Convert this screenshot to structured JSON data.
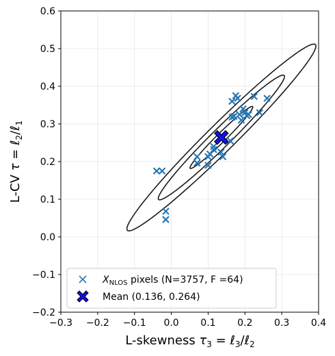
{
  "chart_data": {
    "type": "scatter",
    "xlabel": {
      "base": "L-skewness ",
      "math": "τ",
      "sub": "3",
      "rest": " = ℓ",
      "sub2": "3",
      "slash": "/ℓ",
      "sub3": "2"
    },
    "ylabel": {
      "base": "L-CV ",
      "math": "τ",
      "rest": " = ℓ",
      "sub": "2",
      "slash": "/ℓ",
      "sub2": "1"
    },
    "xlim": [
      -0.3,
      0.4
    ],
    "ylim": [
      -0.2,
      0.6
    ],
    "xticks": [
      -0.3,
      -0.2,
      -0.1,
      0.0,
      0.1,
      0.2,
      0.3,
      0.4
    ],
    "xtick_labels": [
      "−0.3",
      "−0.2",
      "−0.1",
      "0.0",
      "0.1",
      "0.2",
      "0.3",
      "0.4"
    ],
    "yticks": [
      -0.2,
      -0.1,
      0.0,
      0.1,
      0.2,
      0.3,
      0.4,
      0.5,
      0.6
    ],
    "ytick_labels": [
      "−0.2",
      "−0.1",
      "0.0",
      "0.1",
      "0.2",
      "0.3",
      "0.4",
      "0.5",
      "0.6"
    ],
    "grid": true,
    "legend_position": "lower-left",
    "series": [
      {
        "name": "X_NLOS pixels (N=3757, F =64)",
        "label_math": "X",
        "label_sub": "NLOS",
        "label_rest": " pixels (N=3757, F =64)",
        "marker": "x",
        "color": "#2878b5",
        "points": [
          [
            -0.04,
            0.175
          ],
          [
            -0.025,
            0.175
          ],
          [
            -0.015,
            0.068
          ],
          [
            -0.015,
            0.046
          ],
          [
            0.07,
            0.213
          ],
          [
            0.07,
            0.196
          ],
          [
            0.1,
            0.213
          ],
          [
            0.1,
            0.19
          ],
          [
            0.105,
            0.22
          ],
          [
            0.115,
            0.24
          ],
          [
            0.115,
            0.232
          ],
          [
            0.135,
            0.225
          ],
          [
            0.14,
            0.213
          ],
          [
            0.16,
            0.255
          ],
          [
            0.165,
            0.318
          ],
          [
            0.165,
            0.36
          ],
          [
            0.17,
            0.32
          ],
          [
            0.175,
            0.375
          ],
          [
            0.18,
            0.368
          ],
          [
            0.185,
            0.325
          ],
          [
            0.19,
            0.31
          ],
          [
            0.195,
            0.34
          ],
          [
            0.2,
            0.33
          ],
          [
            0.205,
            0.322
          ],
          [
            0.21,
            0.325
          ],
          [
            0.225,
            0.373
          ],
          [
            0.24,
            0.33
          ],
          [
            0.26,
            0.368
          ]
        ]
      },
      {
        "name": "Mean (0.136, 0.264)",
        "marker": "X",
        "color": "#1010ee",
        "points": [
          [
            0.136,
            0.264
          ]
        ]
      }
    ],
    "ellipses": {
      "center": [
        0.136,
        0.264
      ],
      "angle_deg": 44,
      "semi_axes": [
        [
          0.118,
          0.012
        ],
        [
          0.237,
          0.025
        ],
        [
          0.355,
          0.037
        ]
      ],
      "color": "#1a1a1a"
    }
  }
}
